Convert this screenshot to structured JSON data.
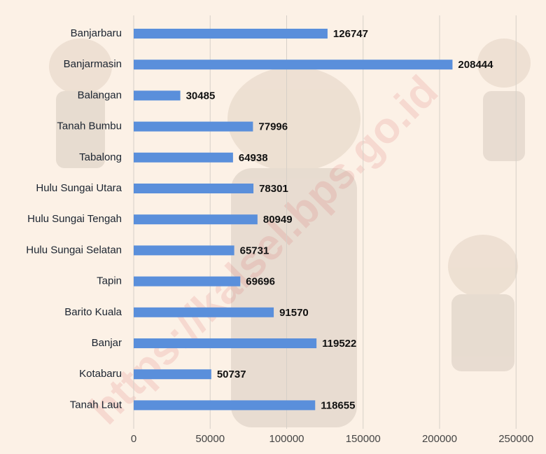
{
  "chart_data": {
    "type": "bar",
    "orientation": "horizontal",
    "categories": [
      "Banjarbaru",
      "Banjarmasin",
      "Balangan",
      "Tanah Bumbu",
      "Tabalong",
      "Hulu Sungai Utara",
      "Hulu Sungai Tengah",
      "Hulu Sungai Selatan",
      "Tapin",
      "Barito Kuala",
      "Banjar",
      "Kotabaru",
      "Tanah Laut"
    ],
    "values": [
      126747,
      208444,
      30485,
      77996,
      64938,
      78301,
      80949,
      65731,
      69696,
      91570,
      119522,
      50737,
      118655
    ],
    "color": "#5a8fdb",
    "xlim": [
      0,
      265000
    ],
    "xticks": [
      0,
      50000,
      100000,
      150000,
      200000,
      250000
    ],
    "grid": true,
    "watermark": "https://kalsel.bps.go.id"
  }
}
